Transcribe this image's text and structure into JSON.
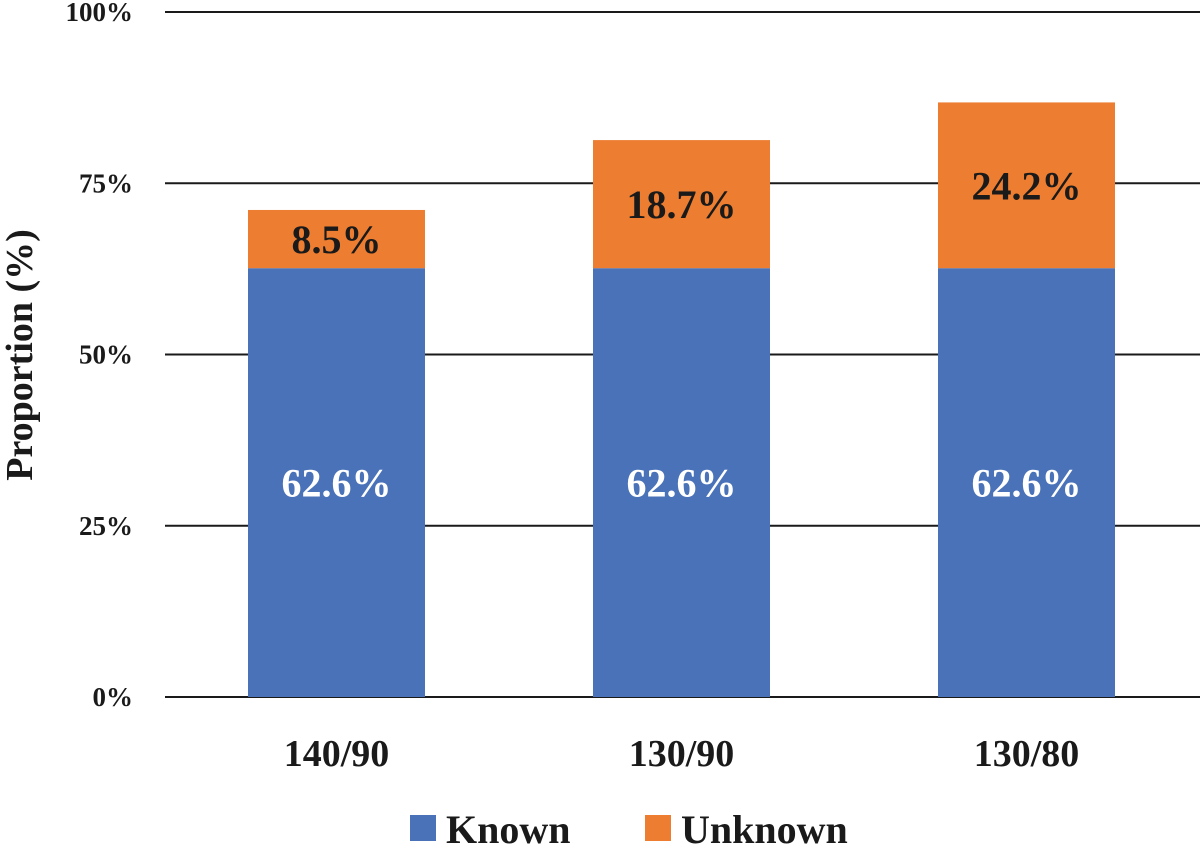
{
  "chart_data": {
    "type": "bar",
    "stacked": true,
    "categories": [
      "140/90",
      "130/90",
      "130/80"
    ],
    "series": [
      {
        "name": "Known",
        "color": "#4a72b8",
        "label_color": "#ffffff",
        "values": [
          62.6,
          62.6,
          62.6
        ],
        "labels": [
          "62.6%",
          "62.6%",
          "62.6%"
        ]
      },
      {
        "name": "Unknown",
        "color": "#ed7d31",
        "label_color": "#1a1a1a",
        "values": [
          8.5,
          18.7,
          24.2
        ],
        "labels": [
          "8.5%",
          "18.7%",
          "24.2%"
        ]
      }
    ],
    "ylabel": "Proportion (%)",
    "ylim": [
      0,
      100
    ],
    "yticks": [
      {
        "value": 0,
        "label": "0%"
      },
      {
        "value": 25,
        "label": "25%"
      },
      {
        "value": 50,
        "label": "50%"
      },
      {
        "value": 75,
        "label": "75%"
      },
      {
        "value": 100,
        "label": "100%"
      }
    ],
    "grid": true,
    "legend_position": "bottom"
  }
}
